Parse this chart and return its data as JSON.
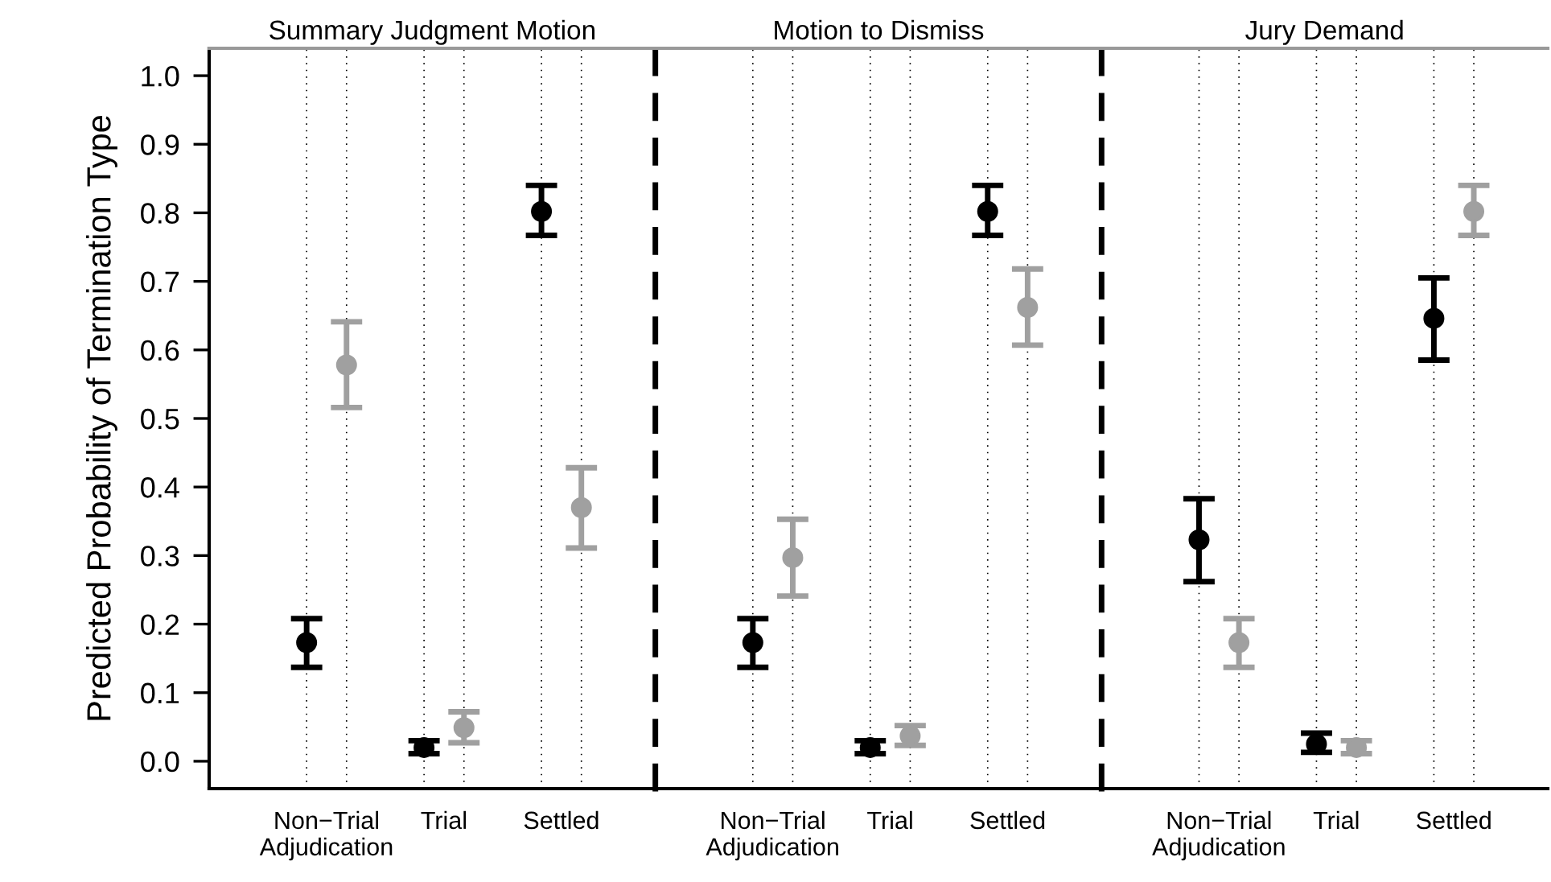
{
  "chart_data": [
    {
      "type": "scatter",
      "title": "Summary Judgment Motion",
      "ylabel": "Predicted Probability of Termination Type",
      "categories": [
        "Non−Trial\nAdjudication",
        "Trial",
        "Settled"
      ],
      "ylim": [
        -0.04,
        1.04
      ],
      "yticks": [
        {
          "value": 0,
          "label": "0.0"
        },
        0.1,
        0.2,
        0.3,
        0.4,
        0.5,
        0.6,
        0.7,
        0.8,
        0.9,
        {
          "value": 1,
          "label": "1.0"
        }
      ],
      "grid": "x",
      "marker": "circle",
      "series": [
        {
          "color": "#000000",
          "values": [
            0.173,
            0.02,
            0.802
          ],
          "errors": [
            [
              0.137,
              0.208
            ],
            [
              0.011,
              0.03
            ],
            [
              0.767,
              0.84
            ]
          ]
        },
        {
          "color": "#a0a0a0",
          "values": [
            0.578,
            0.049,
            0.37
          ],
          "errors": [
            [
              0.516,
              0.641
            ],
            [
              0.027,
              0.072
            ],
            [
              0.311,
              0.428
            ]
          ]
        }
      ]
    },
    {
      "type": "scatter",
      "title": "Motion to Dismiss",
      "categories": [
        "Non−Trial\nAdjudication",
        "Trial",
        "Settled"
      ],
      "ylim": [
        -0.04,
        1.04
      ],
      "tick_labels": "x",
      "grid": "x",
      "marker": "circle",
      "series": [
        {
          "color": "#000000",
          "values": [
            0.173,
            0.02,
            0.802
          ],
          "errors": [
            [
              0.137,
              0.208
            ],
            [
              0.011,
              0.03
            ],
            [
              0.767,
              0.84
            ]
          ]
        },
        {
          "color": "#a0a0a0",
          "values": [
            0.297,
            0.037,
            0.662
          ],
          "errors": [
            [
              0.241,
              0.353
            ],
            [
              0.023,
              0.052
            ],
            [
              0.607,
              0.718
            ]
          ]
        }
      ]
    },
    {
      "type": "scatter",
      "title": "Jury Demand",
      "categories": [
        "Non−Trial\nAdjudication",
        "Trial",
        "Settled"
      ],
      "ylim": [
        -0.04,
        1.04
      ],
      "tick_labels": "x",
      "grid": "x",
      "marker": "circle",
      "series": [
        {
          "color": "#000000",
          "values": [
            0.323,
            0.025,
            0.646
          ],
          "errors": [
            [
              0.262,
              0.383
            ],
            [
              0.013,
              0.041
            ],
            [
              0.585,
              0.705
            ]
          ]
        },
        {
          "color": "#a0a0a0",
          "values": [
            0.173,
            0.02,
            0.802
          ],
          "errors": [
            [
              0.137,
              0.208
            ],
            [
              0.011,
              0.03
            ],
            [
              0.767,
              0.84
            ]
          ]
        }
      ]
    }
  ]
}
